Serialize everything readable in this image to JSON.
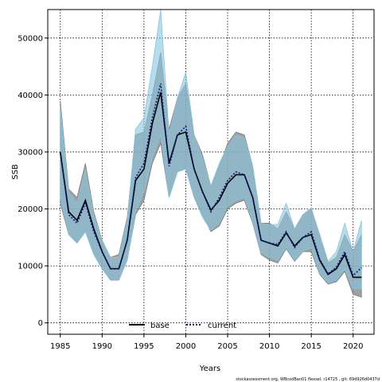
{
  "chart_data": {
    "type": "line",
    "title": "",
    "xlabel": "Years",
    "ylabel": "SSB",
    "xlim": [
      1983.5,
      2022.5
    ],
    "ylim": [
      -2000,
      55000
    ],
    "x_ticks": [
      1985,
      1990,
      1995,
      2000,
      2005,
      2010,
      2015,
      2020
    ],
    "y_ticks": [
      0,
      10000,
      20000,
      30000,
      40000,
      50000
    ],
    "grid": true,
    "legend_position": "bottom-center",
    "footnote": "stockassessment.org, WBcodBan01 flexsel, r14725 , git: 69d926d0437d",
    "x": [
      1985,
      1986,
      1987,
      1988,
      1989,
      1990,
      1991,
      1992,
      1993,
      1994,
      1995,
      1996,
      1997,
      1998,
      1999,
      2000,
      2001,
      2002,
      2003,
      2004,
      2005,
      2006,
      2007,
      2008,
      2009,
      2010,
      2011,
      2012,
      2013,
      2014,
      2015,
      2016,
      2017,
      2018,
      2019,
      2020,
      2021
    ],
    "series": [
      {
        "name": "base",
        "color": "#000000",
        "band_color": "#808080",
        "values": [
          30000,
          19500,
          18000,
          21500,
          16500,
          12500,
          9500,
          9500,
          14500,
          25000,
          27000,
          35000,
          40500,
          28000,
          33000,
          33500,
          27000,
          23000,
          19800,
          21500,
          24500,
          26000,
          26000,
          22000,
          14500,
          14000,
          13500,
          15800,
          13500,
          15000,
          15500,
          11000,
          8500,
          9500,
          12000,
          8000,
          8000
        ],
        "upper": [
          39000,
          23500,
          22000,
          28000,
          19500,
          14500,
          11500,
          12000,
          18500,
          33000,
          33500,
          40000,
          47500,
          34000,
          39500,
          42000,
          33000,
          29500,
          24000,
          27500,
          31500,
          33500,
          33000,
          27500,
          17500,
          17500,
          16500,
          19500,
          16500,
          19000,
          20000,
          15500,
          10500,
          11500,
          15500,
          12500,
          15500
        ],
        "lower": [
          21000,
          15500,
          14000,
          16000,
          12000,
          9500,
          7500,
          7500,
          11000,
          19000,
          21500,
          28000,
          31500,
          22000,
          26500,
          27000,
          22000,
          19000,
          16000,
          17000,
          20000,
          21000,
          21500,
          17500,
          12000,
          11000,
          10500,
          13000,
          10800,
          12500,
          12500,
          8500,
          6800,
          7200,
          9000,
          5000,
          4500
        ]
      },
      {
        "name": "current",
        "color": "#0a1a80",
        "band_color": "#87c5e0",
        "values": [
          30000,
          19000,
          17500,
          21000,
          16000,
          12500,
          9500,
          9500,
          14500,
          25500,
          28000,
          36000,
          42000,
          27500,
          33000,
          34500,
          27000,
          23000,
          19500,
          22000,
          25000,
          26500,
          26000,
          22000,
          14500,
          14000,
          13800,
          16000,
          13200,
          15000,
          16000,
          11200,
          8600,
          9800,
          12500,
          8300,
          9700
        ],
        "upper": [
          38000,
          23000,
          21000,
          27000,
          19000,
          14500,
          11500,
          11500,
          18000,
          34000,
          36000,
          45000,
          55000,
          33000,
          39500,
          44000,
          33000,
          29000,
          24000,
          28000,
          31000,
          33000,
          32500,
          27500,
          17500,
          17200,
          17300,
          21000,
          16500,
          19000,
          20200,
          15500,
          10800,
          12500,
          17500,
          12500,
          18000
        ],
        "lower": [
          22000,
          15500,
          14000,
          16000,
          12000,
          9500,
          7600,
          7600,
          11000,
          19500,
          23000,
          29000,
          33000,
          22000,
          26500,
          27000,
          22000,
          18500,
          16300,
          17500,
          20500,
          21500,
          22000,
          17800,
          12300,
          11500,
          11000,
          13200,
          11000,
          12600,
          13200,
          8700,
          7000,
          7500,
          9500,
          6000,
          6000
        ]
      }
    ]
  }
}
